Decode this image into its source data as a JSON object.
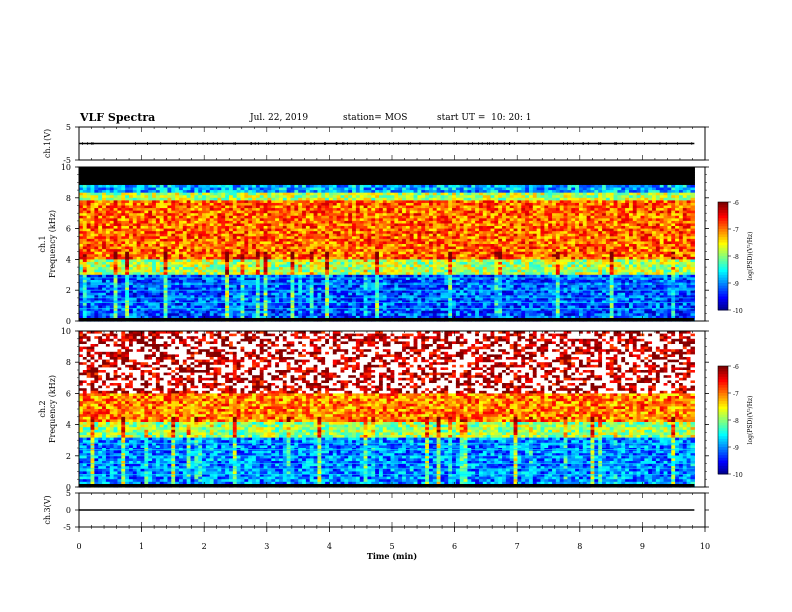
{
  "header": {
    "title": "VLF Spectra",
    "date": "Jul. 22, 2019",
    "station": "station= MOS",
    "start": "start UT =  10: 20: 1"
  },
  "chart_data": [
    {
      "type": "line",
      "panel": "ch1-waveform",
      "ylabel": "ch.1(V)",
      "ylim": [
        -5,
        5
      ],
      "yticks": [
        "5",
        "-5"
      ],
      "series": [
        {
          "values_description_free": true,
          "x": [
            0,
            9.83
          ],
          "y": [
            0,
            0
          ]
        }
      ],
      "color": "#000000"
    },
    {
      "type": "heatmap",
      "panel": "ch1-spectrogram",
      "ylabel": "ch.1\nFrequency (kHz)",
      "ylim": [
        0,
        10
      ],
      "yticks": [
        "0",
        "2",
        "4",
        "6",
        "8",
        "10"
      ],
      "xlim": [
        0,
        10
      ],
      "data_extent_x": [
        0,
        9.83
      ],
      "bands": [
        {
          "from": 0,
          "to": 3.0,
          "level": -9.2
        },
        {
          "from": 3.0,
          "to": 4.0,
          "level": -7.8
        },
        {
          "from": 4.0,
          "to": 7.8,
          "level": -6.9
        },
        {
          "from": 7.8,
          "to": 8.3,
          "level": -7.8
        },
        {
          "from": 8.3,
          "to": 8.9,
          "level": -8.8
        },
        {
          "from": 8.9,
          "to": 10.0,
          "level": -10.5
        }
      ],
      "colorbar": {
        "label": "log(PSD)(V²/Hz)",
        "min": -10,
        "max": -6,
        "ticks": [
          "-6",
          "-7",
          "-8",
          "-9",
          "-10"
        ]
      }
    },
    {
      "type": "heatmap",
      "panel": "ch2-spectrogram",
      "ylabel": "ch.2\nFrequency (kHz)",
      "ylim": [
        0,
        10
      ],
      "yticks": [
        "0",
        "2",
        "4",
        "6",
        "8",
        "10"
      ],
      "xlim": [
        0,
        10
      ],
      "data_extent_x": [
        0,
        9.83
      ],
      "bands": [
        {
          "from": 0,
          "to": 3.2,
          "level": -9.0
        },
        {
          "from": 3.2,
          "to": 4.2,
          "level": -7.9
        },
        {
          "from": 4.2,
          "to": 6.0,
          "level": -7.0
        },
        {
          "from": 6.0,
          "to": 10.0,
          "level": -6.2
        }
      ],
      "colorbar": {
        "label": "log(PSD)(V²/Hz)",
        "min": -10,
        "max": -6,
        "ticks": [
          "-6",
          "-7",
          "-8",
          "-9",
          "-10"
        ]
      }
    },
    {
      "type": "line",
      "panel": "ch3-waveform",
      "ylabel": "ch.3(V)",
      "ylim": [
        -5,
        5
      ],
      "yticks": [
        "5",
        "0",
        "-5"
      ],
      "series": [
        {
          "x": [
            0,
            9.83
          ],
          "y": [
            0,
            0
          ]
        }
      ],
      "color": "#000000"
    }
  ],
  "x_axis": {
    "label": "Time (min)",
    "ticks": [
      "0",
      "1",
      "2",
      "3",
      "4",
      "5",
      "6",
      "7",
      "8",
      "9",
      "10"
    ],
    "range": [
      0,
      10
    ]
  }
}
